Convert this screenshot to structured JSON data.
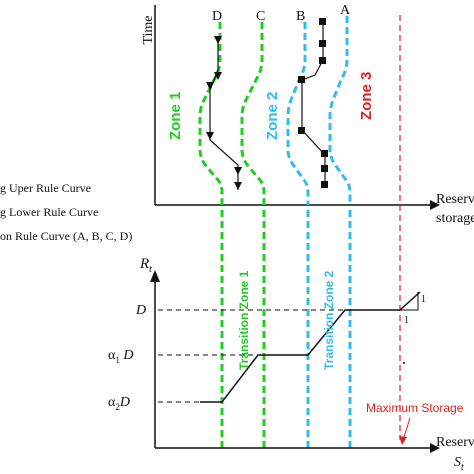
{
  "top_chart": {
    "y_axis_label": "Time",
    "x_axis_label_line1": "Reserv",
    "x_axis_label_line2": "storage",
    "curve_labels": [
      "D",
      "C",
      "B",
      "A"
    ],
    "zone_labels": [
      "Zone 1",
      "Zone 2",
      "Zone 3"
    ]
  },
  "legend": {
    "items": [
      "g Uper Rule Curve",
      "g Lower Rule Curve",
      "on Rule Curve (A, B, C, D)"
    ]
  },
  "bottom_chart": {
    "y_axis_label": "R",
    "y_axis_sub": "t",
    "x_axis_label_line1": "Reserv",
    "x_axis_label_line2": "S",
    "x_axis_sub": "t",
    "y_ticks": [
      {
        "main": "D",
        "sub": ""
      },
      {
        "main": "α",
        "sub": "1",
        "rest": " D"
      },
      {
        "main": "α",
        "sub": "2",
        "rest": "D"
      }
    ],
    "transition_labels": [
      "Transition Zone 1",
      "Transition Zone 2"
    ],
    "max_storage_label": "Maximum Storage",
    "slope_label_1": "1",
    "slope_label_2": "1"
  },
  "colors": {
    "green": "#22cc22",
    "cyan": "#33bbee",
    "red": "#dd2222",
    "black": "#111111"
  }
}
